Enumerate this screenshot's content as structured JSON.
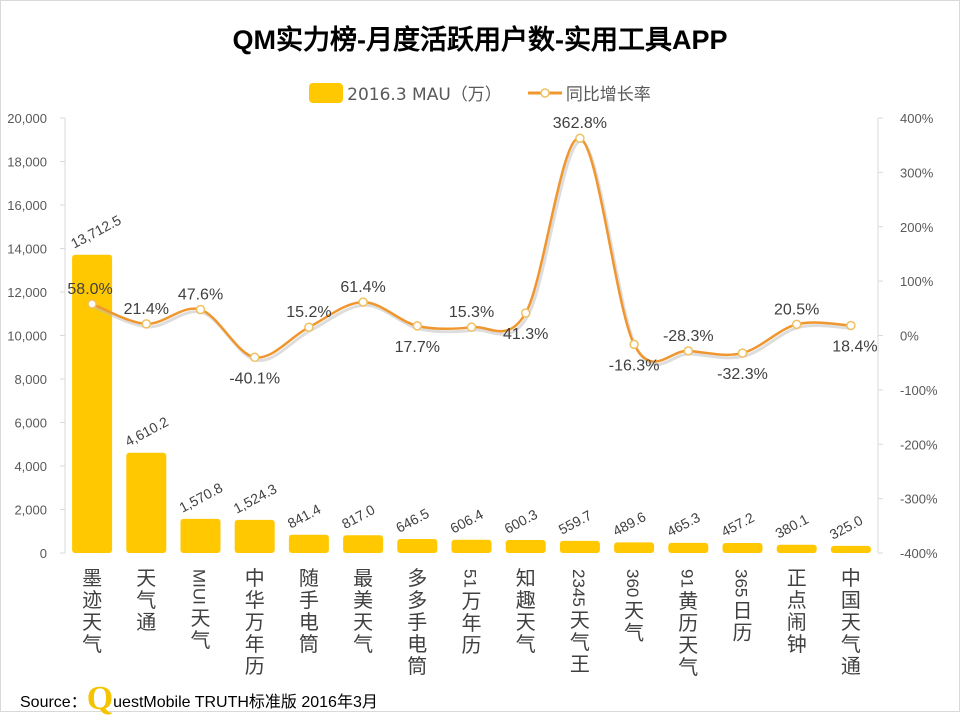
{
  "chart_data": {
    "type": "bar+line",
    "title": "QM实力榜-月度活跃用户数-实用工具APP",
    "categories": [
      "墨迹天气",
      "天气通",
      "MIUI天气",
      "中华万年历",
      "随手电筒",
      "最美天气",
      "多多手电筒",
      "51万年历",
      "知趣天气",
      "2345天气王",
      "360天气",
      "91黄历天气",
      "365日历",
      "正点闹钟",
      "中国天气通"
    ],
    "series": [
      {
        "name": "2016.3 MAU（万）",
        "type": "bar",
        "axis": "left",
        "color": "#FFC800",
        "values": [
          13712.5,
          4610.2,
          1570.8,
          1524.3,
          841.4,
          817.0,
          646.5,
          606.4,
          600.3,
          559.7,
          489.6,
          465.3,
          457.2,
          380.1,
          325.0
        ],
        "labels": [
          "13,712.5",
          "4,610.2",
          "1,570.8",
          "1,524.3",
          "841.4",
          "817.0",
          "646.5",
          "606.4",
          "600.3",
          "559.7",
          "489.6",
          "465.3",
          "457.2",
          "380.1",
          "325.0"
        ]
      },
      {
        "name": "同比增长率",
        "type": "line",
        "axis": "right",
        "color": "#F0962E",
        "values": [
          58.0,
          21.4,
          47.6,
          -40.1,
          15.2,
          61.4,
          17.7,
          15.3,
          41.3,
          362.8,
          -16.3,
          -28.3,
          -32.3,
          20.5,
          18.4
        ],
        "labels": [
          "58.0%",
          "21.4%",
          "47.6%",
          "-40.1%",
          "15.2%",
          "61.4%",
          "17.7%",
          "15.3%",
          "41.3%",
          "362.8%",
          "-16.3%",
          "-28.3%",
          "-32.3%",
          "20.5%",
          "18.4%"
        ]
      }
    ],
    "y_left": {
      "range": [
        0,
        20000
      ],
      "ticks": [
        "0",
        "2,000",
        "4,000",
        "6,000",
        "8,000",
        "10,000",
        "12,000",
        "14,000",
        "16,000",
        "18,000",
        "20,000"
      ]
    },
    "y_right": {
      "range": [
        -400,
        400
      ],
      "ticks": [
        "-400%",
        "-300%",
        "-200%",
        "-100%",
        "0%",
        "100%",
        "200%",
        "300%",
        "400%"
      ]
    },
    "grid": false,
    "legend_position": "top"
  },
  "source": {
    "prefix": "Source：",
    "logo_letter": "Q",
    "text": "uestMobile TRUTH标准版 2016年3月"
  }
}
